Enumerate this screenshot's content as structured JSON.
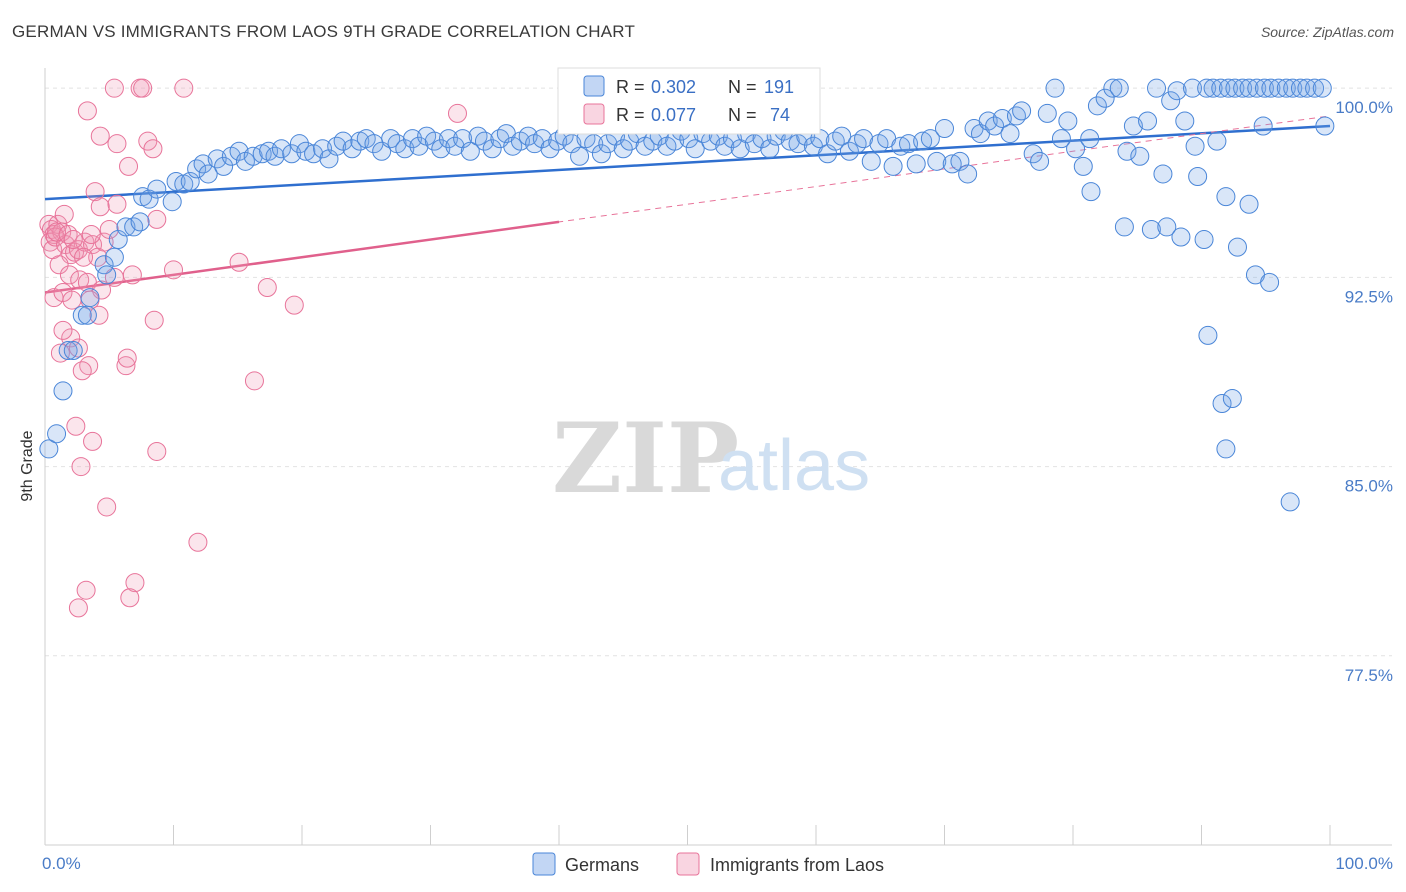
{
  "title": "GERMAN VS IMMIGRANTS FROM LAOS 9TH GRADE CORRELATION CHART",
  "source": "Source: ZipAtlas.com",
  "watermark": {
    "zip": "ZIP",
    "atlas": "atlas"
  },
  "colors": {
    "germans": "#4a86d8",
    "germans_fill": "rgba(120,165,230,0.28)",
    "laos": "#e8749a",
    "laos_fill": "rgba(240,150,180,0.25)",
    "tick": "#4a7cc7"
  },
  "legend": {
    "germans": {
      "r_label": "R = ",
      "r_value": "0.302",
      "n_label": "N = ",
      "n_value": "191"
    },
    "laos": {
      "r_label": "R = ",
      "r_value": "0.077",
      "n_label": "N = ",
      "n_value": "74"
    }
  },
  "bottom_legend": [
    "Germans",
    "Immigrants from Laos"
  ],
  "chart_data": {
    "type": "scatter",
    "title": "GERMAN VS IMMIGRANTS FROM LAOS 9TH GRADE CORRELATION CHART",
    "xlabel": "",
    "ylabel": "9th Grade",
    "xlim": [
      0,
      100
    ],
    "ylim": [
      70.0,
      100.8
    ],
    "x_tick_labels": [
      "0.0%",
      "100.0%"
    ],
    "y_ticks": [
      77.5,
      85.0,
      92.5,
      100.0
    ],
    "y_tick_labels": [
      "77.5%",
      "85.0%",
      "92.5%",
      "100.0%"
    ],
    "grid": true,
    "series": [
      {
        "name": "Germans",
        "trend": {
          "x": [
            0,
            100
          ],
          "y": [
            95.6,
            98.5
          ]
        },
        "points": [
          [
            0.3,
            85.7
          ],
          [
            0.9,
            86.3
          ],
          [
            1.4,
            88.0
          ],
          [
            1.8,
            89.6
          ],
          [
            2.2,
            89.6
          ],
          [
            2.9,
            91.0
          ],
          [
            3.3,
            91.0
          ],
          [
            3.5,
            91.7
          ],
          [
            4.6,
            93.0
          ],
          [
            4.8,
            92.6
          ],
          [
            5.4,
            93.3
          ],
          [
            5.7,
            94.0
          ],
          [
            6.3,
            94.5
          ],
          [
            6.9,
            94.5
          ],
          [
            7.4,
            94.7
          ],
          [
            7.6,
            95.7
          ],
          [
            8.1,
            95.6
          ],
          [
            8.7,
            96.0
          ],
          [
            9.9,
            95.5
          ],
          [
            10.2,
            96.3
          ],
          [
            10.8,
            96.2
          ],
          [
            11.3,
            96.3
          ],
          [
            11.8,
            96.8
          ],
          [
            12.3,
            97.0
          ],
          [
            12.7,
            96.6
          ],
          [
            13.4,
            97.2
          ],
          [
            13.9,
            96.9
          ],
          [
            14.5,
            97.3
          ],
          [
            15.1,
            97.5
          ],
          [
            15.6,
            97.1
          ],
          [
            16.2,
            97.3
          ],
          [
            16.9,
            97.4
          ],
          [
            17.4,
            97.5
          ],
          [
            17.9,
            97.3
          ],
          [
            18.4,
            97.6
          ],
          [
            19.2,
            97.4
          ],
          [
            19.8,
            97.8
          ],
          [
            20.3,
            97.5
          ],
          [
            20.9,
            97.4
          ],
          [
            21.6,
            97.6
          ],
          [
            22.1,
            97.2
          ],
          [
            22.7,
            97.7
          ],
          [
            23.2,
            97.9
          ],
          [
            23.9,
            97.6
          ],
          [
            24.5,
            97.9
          ],
          [
            25.0,
            98.0
          ],
          [
            25.6,
            97.8
          ],
          [
            26.2,
            97.5
          ],
          [
            26.9,
            98.0
          ],
          [
            27.4,
            97.8
          ],
          [
            28.0,
            97.6
          ],
          [
            28.6,
            98.0
          ],
          [
            29.1,
            97.7
          ],
          [
            29.7,
            98.1
          ],
          [
            30.3,
            97.9
          ],
          [
            30.8,
            97.6
          ],
          [
            31.4,
            98.0
          ],
          [
            31.9,
            97.7
          ],
          [
            32.5,
            98.0
          ],
          [
            33.1,
            97.5
          ],
          [
            33.7,
            98.1
          ],
          [
            34.2,
            97.9
          ],
          [
            34.8,
            97.6
          ],
          [
            35.4,
            98.0
          ],
          [
            35.9,
            98.2
          ],
          [
            36.4,
            97.7
          ],
          [
            37.0,
            97.9
          ],
          [
            37.6,
            98.1
          ],
          [
            38.1,
            97.8
          ],
          [
            38.7,
            98.0
          ],
          [
            39.3,
            97.6
          ],
          [
            39.9,
            97.9
          ],
          [
            40.4,
            98.1
          ],
          [
            41.0,
            97.8
          ],
          [
            41.6,
            97.3
          ],
          [
            42.1,
            98.0
          ],
          [
            42.7,
            97.8
          ],
          [
            43.3,
            97.4
          ],
          [
            43.8,
            97.8
          ],
          [
            44.4,
            98.1
          ],
          [
            45.0,
            97.6
          ],
          [
            45.5,
            97.9
          ],
          [
            46.1,
            98.2
          ],
          [
            46.7,
            97.7
          ],
          [
            47.3,
            97.9
          ],
          [
            47.8,
            98.1
          ],
          [
            48.4,
            97.7
          ],
          [
            49.0,
            97.9
          ],
          [
            49.5,
            98.3
          ],
          [
            50.1,
            98.0
          ],
          [
            50.6,
            97.6
          ],
          [
            51.2,
            98.2
          ],
          [
            51.8,
            97.9
          ],
          [
            52.4,
            98.1
          ],
          [
            52.9,
            97.7
          ],
          [
            53.5,
            98.0
          ],
          [
            54.1,
            97.6
          ],
          [
            54.6,
            98.2
          ],
          [
            55.2,
            97.8
          ],
          [
            55.8,
            98.0
          ],
          [
            56.4,
            97.6
          ],
          [
            56.9,
            98.1
          ],
          [
            57.5,
            98.3
          ],
          [
            58.0,
            97.9
          ],
          [
            58.6,
            97.8
          ],
          [
            59.2,
            98.1
          ],
          [
            59.8,
            97.7
          ],
          [
            60.3,
            98.0
          ],
          [
            60.9,
            97.4
          ],
          [
            61.5,
            97.9
          ],
          [
            62.0,
            98.1
          ],
          [
            62.6,
            97.5
          ],
          [
            63.2,
            97.8
          ],
          [
            63.7,
            98.0
          ],
          [
            64.3,
            97.1
          ],
          [
            64.9,
            97.8
          ],
          [
            65.5,
            98.0
          ],
          [
            66.0,
            96.9
          ],
          [
            66.6,
            97.7
          ],
          [
            67.2,
            97.8
          ],
          [
            67.8,
            97.0
          ],
          [
            68.3,
            97.9
          ],
          [
            68.9,
            98.0
          ],
          [
            69.4,
            97.1
          ],
          [
            70.0,
            98.4
          ],
          [
            70.6,
            97.0
          ],
          [
            71.2,
            97.1
          ],
          [
            71.8,
            96.6
          ],
          [
            72.3,
            98.4
          ],
          [
            72.8,
            98.2
          ],
          [
            73.4,
            98.7
          ],
          [
            73.9,
            98.5
          ],
          [
            74.5,
            98.8
          ],
          [
            75.1,
            98.2
          ],
          [
            75.6,
            98.9
          ],
          [
            76.0,
            99.1
          ],
          [
            76.9,
            97.4
          ],
          [
            77.4,
            97.1
          ],
          [
            78.0,
            99.0
          ],
          [
            78.6,
            100.0
          ],
          [
            79.1,
            98.0
          ],
          [
            79.6,
            98.7
          ],
          [
            80.2,
            97.6
          ],
          [
            80.8,
            96.9
          ],
          [
            81.3,
            98.0
          ],
          [
            81.9,
            99.3
          ],
          [
            82.5,
            99.6
          ],
          [
            83.1,
            100.0
          ],
          [
            83.6,
            100.0
          ],
          [
            84.2,
            97.5
          ],
          [
            84.7,
            98.5
          ],
          [
            85.2,
            97.3
          ],
          [
            85.8,
            98.7
          ],
          [
            86.5,
            100.0
          ],
          [
            87.0,
            96.6
          ],
          [
            87.6,
            99.5
          ],
          [
            88.1,
            99.9
          ],
          [
            88.7,
            98.7
          ],
          [
            89.3,
            100.0
          ],
          [
            90.4,
            100.0
          ],
          [
            90.9,
            100.0
          ],
          [
            91.5,
            100.0
          ],
          [
            92.1,
            100.0
          ],
          [
            92.6,
            100.0
          ],
          [
            93.2,
            100.0
          ],
          [
            93.7,
            100.0
          ],
          [
            94.3,
            100.0
          ],
          [
            94.9,
            100.0
          ],
          [
            95.4,
            100.0
          ],
          [
            96.0,
            100.0
          ],
          [
            96.6,
            100.0
          ],
          [
            97.1,
            100.0
          ],
          [
            97.7,
            100.0
          ],
          [
            98.2,
            100.0
          ],
          [
            98.8,
            100.0
          ],
          [
            99.4,
            100.0
          ],
          [
            99.6,
            98.5
          ],
          [
            81.4,
            95.9
          ],
          [
            84.0,
            94.5
          ],
          [
            86.1,
            94.4
          ],
          [
            88.4,
            94.1
          ],
          [
            87.3,
            94.5
          ],
          [
            90.2,
            94.0
          ],
          [
            92.8,
            93.7
          ],
          [
            89.7,
            96.5
          ],
          [
            91.9,
            95.7
          ],
          [
            93.7,
            95.4
          ],
          [
            90.5,
            90.2
          ],
          [
            91.6,
            87.5
          ],
          [
            92.4,
            87.7
          ],
          [
            91.9,
            85.7
          ],
          [
            94.2,
            92.6
          ],
          [
            95.3,
            92.3
          ],
          [
            96.9,
            83.6
          ],
          [
            91.2,
            97.9
          ],
          [
            89.5,
            97.7
          ],
          [
            94.8,
            98.5
          ]
        ]
      },
      {
        "name": "Immigrants from Laos",
        "trend": {
          "x": [
            0,
            40
          ],
          "y": [
            91.9,
            94.7
          ]
        },
        "trend_extended": {
          "x": [
            0,
            100
          ],
          "y": [
            91.9,
            98.9
          ]
        },
        "points": [
          [
            3.3,
            99.1
          ],
          [
            5.4,
            100.0
          ],
          [
            7.4,
            100.0
          ],
          [
            7.6,
            100.0
          ],
          [
            10.8,
            100.0
          ],
          [
            4.3,
            98.1
          ],
          [
            5.6,
            97.8
          ],
          [
            8.0,
            97.9
          ],
          [
            8.4,
            97.6
          ],
          [
            6.5,
            96.9
          ],
          [
            3.9,
            95.9
          ],
          [
            4.3,
            95.3
          ],
          [
            5.6,
            95.4
          ],
          [
            8.7,
            94.8
          ],
          [
            0.3,
            94.6
          ],
          [
            0.5,
            94.4
          ],
          [
            0.7,
            94.2
          ],
          [
            1.0,
            94.6
          ],
          [
            1.3,
            94.3
          ],
          [
            0.4,
            93.9
          ],
          [
            0.6,
            93.6
          ],
          [
            0.8,
            94.1
          ],
          [
            1.6,
            93.8
          ],
          [
            2.0,
            93.4
          ],
          [
            2.3,
            93.5
          ],
          [
            2.6,
            93.6
          ],
          [
            3.1,
            93.9
          ],
          [
            3.7,
            93.8
          ],
          [
            4.1,
            93.3
          ],
          [
            4.6,
            93.9
          ],
          [
            1.1,
            93.0
          ],
          [
            1.9,
            92.6
          ],
          [
            2.7,
            92.4
          ],
          [
            3.3,
            92.3
          ],
          [
            4.4,
            92.0
          ],
          [
            5.4,
            92.5
          ],
          [
            6.8,
            92.6
          ],
          [
            10.0,
            92.8
          ],
          [
            15.1,
            93.1
          ],
          [
            17.3,
            92.1
          ],
          [
            19.4,
            91.4
          ],
          [
            0.7,
            91.7
          ],
          [
            1.4,
            91.9
          ],
          [
            2.1,
            91.6
          ],
          [
            3.5,
            91.6
          ],
          [
            4.2,
            91.0
          ],
          [
            8.5,
            90.8
          ],
          [
            2.0,
            90.1
          ],
          [
            2.6,
            89.7
          ],
          [
            1.2,
            89.5
          ],
          [
            3.4,
            89.0
          ],
          [
            6.3,
            89.0
          ],
          [
            6.4,
            89.3
          ],
          [
            2.9,
            88.8
          ],
          [
            16.3,
            88.4
          ],
          [
            32.1,
            99.0
          ],
          [
            2.4,
            86.6
          ],
          [
            3.7,
            86.0
          ],
          [
            2.8,
            85.0
          ],
          [
            8.7,
            85.6
          ],
          [
            4.8,
            83.4
          ],
          [
            11.9,
            82.0
          ],
          [
            7.0,
            80.4
          ],
          [
            6.6,
            79.8
          ],
          [
            3.2,
            80.1
          ],
          [
            2.6,
            79.4
          ],
          [
            1.4,
            90.4
          ],
          [
            0.9,
            94.3
          ],
          [
            1.8,
            94.2
          ],
          [
            2.2,
            94.0
          ],
          [
            3.0,
            93.3
          ],
          [
            5.0,
            94.4
          ],
          [
            3.6,
            94.2
          ],
          [
            1.5,
            95.0
          ]
        ]
      }
    ]
  }
}
